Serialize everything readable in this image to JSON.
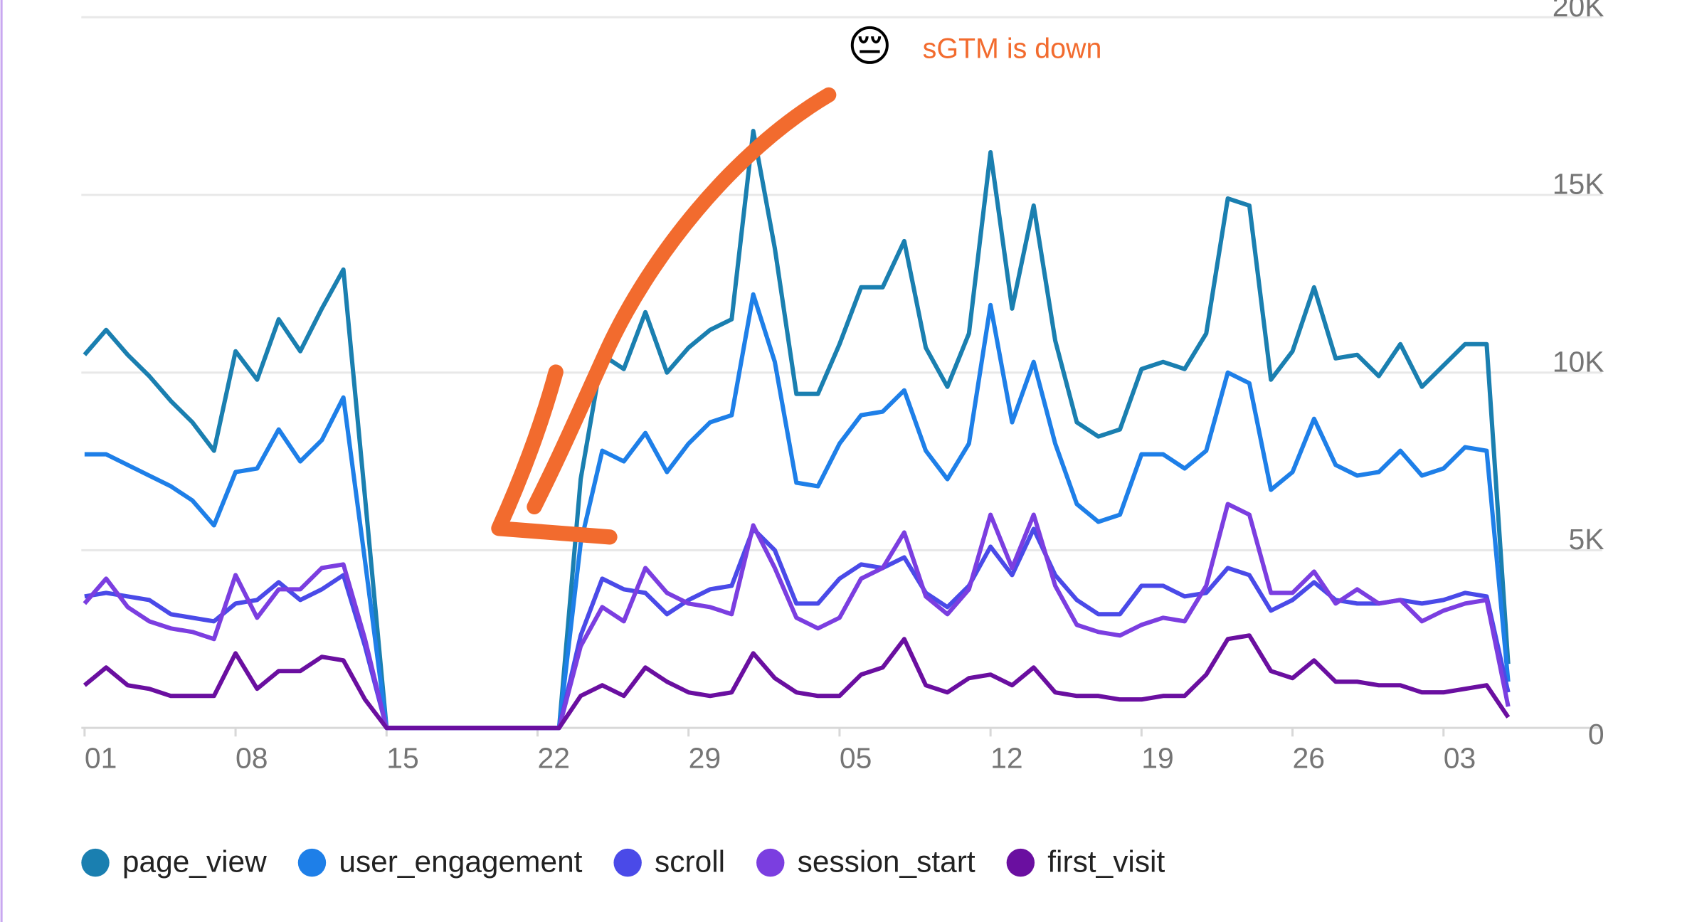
{
  "chart_data": {
    "type": "line",
    "annotation": "sGTM is down",
    "annotation_emoji": "😔",
    "categories": [
      "01",
      null,
      null,
      null,
      null,
      null,
      null,
      "08",
      null,
      null,
      null,
      null,
      null,
      null,
      "15",
      null,
      null,
      null,
      null,
      null,
      null,
      "22",
      null,
      null,
      null,
      null,
      null,
      null,
      "29",
      null,
      null,
      null,
      null,
      null,
      null,
      "05",
      null,
      null,
      null,
      null,
      null,
      null,
      "12",
      null,
      null,
      null,
      null,
      null,
      null,
      "19",
      null,
      null,
      null,
      null,
      null,
      null,
      "26",
      null,
      null,
      null,
      null,
      null,
      null,
      "03",
      null,
      null,
      null
    ],
    "ylim": [
      0,
      20000
    ],
    "yticks": [
      0,
      {
        "value": 5000,
        "label": "5K"
      },
      {
        "value": 10000,
        "label": "10K"
      },
      {
        "value": 15000,
        "label": "15K"
      },
      {
        "value": 20000,
        "label": "20K"
      }
    ],
    "grid": true,
    "legend": "bottom",
    "series": [
      {
        "name": "page_view",
        "color": "#1a7fb0",
        "values": [
          10500,
          11200,
          10500,
          9900,
          9200,
          8600,
          7800,
          10600,
          9800,
          11500,
          10600,
          11800,
          12900,
          6500,
          0,
          0,
          0,
          0,
          0,
          0,
          0,
          0,
          0,
          7000,
          10500,
          10100,
          11700,
          10000,
          10700,
          11200,
          11500,
          16800,
          13500,
          9400,
          9400,
          10800,
          12400,
          12400,
          13700,
          10700,
          9600,
          11100,
          16200,
          11800,
          14700,
          10900,
          8600,
          8200,
          8400,
          10100,
          10300,
          10100,
          11100,
          14900,
          14700,
          9800,
          10600,
          12400,
          10400,
          10500,
          9900,
          10800,
          9600,
          10200,
          10800,
          10800,
          1800
        ]
      },
      {
        "name": "user_engagement",
        "color": "#1e7fe8",
        "values": [
          7700,
          7700,
          7400,
          7100,
          6800,
          6400,
          5700,
          7200,
          7300,
          8400,
          7500,
          8100,
          9300,
          4700,
          0,
          0,
          0,
          0,
          0,
          0,
          0,
          0,
          0,
          5200,
          7800,
          7500,
          8300,
          7200,
          8000,
          8600,
          8800,
          12200,
          10300,
          6900,
          6800,
          8000,
          8800,
          8900,
          9500,
          7800,
          7000,
          8000,
          11900,
          8600,
          10300,
          8000,
          6300,
          5800,
          6000,
          7700,
          7700,
          7300,
          7800,
          10000,
          9700,
          6700,
          7200,
          8700,
          7400,
          7100,
          7200,
          7800,
          7100,
          7300,
          7900,
          7800,
          1300
        ]
      },
      {
        "name": "scroll",
        "color": "#4a4ae8",
        "values": [
          3700,
          3800,
          3700,
          3600,
          3200,
          3100,
          3000,
          3500,
          3600,
          4100,
          3600,
          3900,
          4300,
          2300,
          0,
          0,
          0,
          0,
          0,
          0,
          0,
          0,
          0,
          2600,
          4200,
          3900,
          3800,
          3200,
          3600,
          3900,
          4000,
          5600,
          5000,
          3500,
          3500,
          4200,
          4600,
          4500,
          4800,
          3800,
          3400,
          4000,
          5100,
          4300,
          5600,
          4300,
          3600,
          3200,
          3200,
          4000,
          4000,
          3700,
          3800,
          4500,
          4300,
          3300,
          3600,
          4100,
          3600,
          3500,
          3500,
          3600,
          3500,
          3600,
          3800,
          3700,
          1000
        ]
      },
      {
        "name": "session_start",
        "color": "#7b3ee0",
        "values": [
          3500,
          4200,
          3400,
          3000,
          2800,
          2700,
          2500,
          4300,
          3100,
          3900,
          3900,
          4500,
          4600,
          2500,
          0,
          0,
          0,
          0,
          0,
          0,
          0,
          0,
          0,
          2300,
          3400,
          3000,
          4500,
          3800,
          3500,
          3400,
          3200,
          5700,
          4500,
          3100,
          2800,
          3100,
          4200,
          4500,
          5500,
          3700,
          3200,
          3900,
          6000,
          4500,
          6000,
          4000,
          2900,
          2700,
          2600,
          2900,
          3100,
          3000,
          4000,
          6300,
          6000,
          3800,
          3800,
          4400,
          3500,
          3900,
          3500,
          3600,
          3000,
          3300,
          3500,
          3600,
          600
        ]
      },
      {
        "name": "first_visit",
        "color": "#6a0fa0",
        "values": [
          1200,
          1700,
          1200,
          1100,
          900,
          900,
          900,
          2100,
          1100,
          1600,
          1600,
          2000,
          1900,
          800,
          0,
          0,
          0,
          0,
          0,
          0,
          0,
          0,
          0,
          900,
          1200,
          900,
          1700,
          1300,
          1000,
          900,
          1000,
          2100,
          1400,
          1000,
          900,
          900,
          1500,
          1700,
          2500,
          1200,
          1000,
          1400,
          1500,
          1200,
          1700,
          1000,
          900,
          900,
          800,
          800,
          900,
          900,
          1500,
          2500,
          2600,
          1600,
          1400,
          1900,
          1300,
          1300,
          1200,
          1200,
          1000,
          1000,
          1100,
          1200,
          300
        ]
      }
    ]
  }
}
